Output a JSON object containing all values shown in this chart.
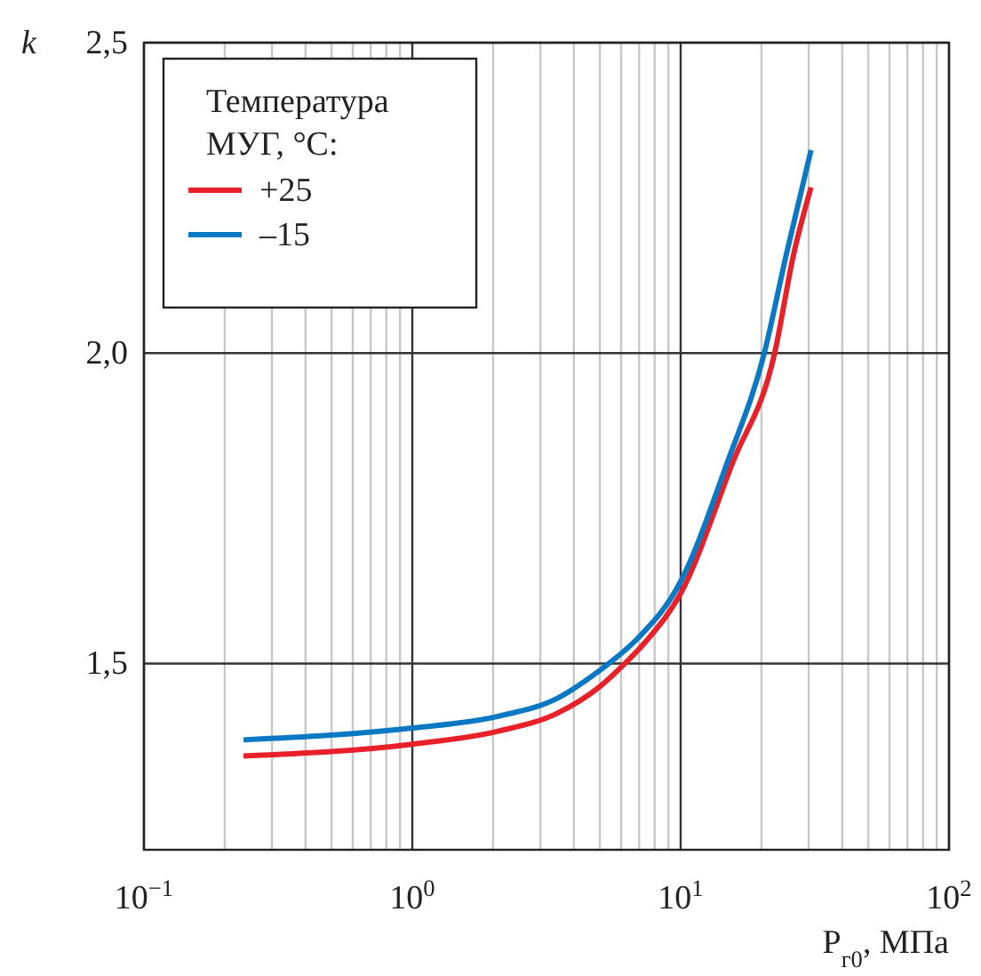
{
  "chart_data": {
    "type": "line",
    "xlabel": "P$_{г0}$, МПа",
    "ylabel": "k",
    "legend_title": "Температура МУГ, °C:",
    "log": "x",
    "grid": true,
    "legend": "top left",
    "line_style": "solid",
    "marker": "none",
    "xlim": [
      0.1,
      100
    ],
    "ylim": [
      1.2,
      2.5
    ],
    "xticks": [
      {
        "value": 0.1,
        "label": "10$^{−1}$"
      },
      {
        "value": 0.2,
        "label": null
      },
      {
        "value": 0.3,
        "label": null
      },
      {
        "value": 0.4,
        "label": null
      },
      {
        "value": 0.5,
        "label": null
      },
      {
        "value": 0.6,
        "label": null
      },
      {
        "value": 0.7,
        "label": null
      },
      {
        "value": 0.8,
        "label": null
      },
      {
        "value": 0.9,
        "label": null
      },
      {
        "value": 1,
        "label": "10$^{0}$"
      },
      {
        "value": 2,
        "label": null
      },
      {
        "value": 3,
        "label": null
      },
      {
        "value": 4,
        "label": null
      },
      {
        "value": 5,
        "label": null
      },
      {
        "value": 6,
        "label": null
      },
      {
        "value": 7,
        "label": null
      },
      {
        "value": 8,
        "label": null
      },
      {
        "value": 9,
        "label": null
      },
      {
        "value": 10,
        "label": "10$^{1}$"
      },
      {
        "value": 20,
        "label": null
      },
      {
        "value": 30,
        "label": null
      },
      {
        "value": 40,
        "label": null
      },
      {
        "value": 50,
        "label": null
      },
      {
        "value": 60,
        "label": null
      },
      {
        "value": 70,
        "label": null
      },
      {
        "value": 80,
        "label": null
      },
      {
        "value": 90,
        "label": null
      },
      {
        "value": 100,
        "label": "10$^{2}$"
      }
    ],
    "yticks": [
      {
        "value": 1.5,
        "label": "1,5"
      },
      {
        "value": 2.0,
        "label": "2,0"
      },
      {
        "value": 2.5,
        "label": "2,5"
      }
    ],
    "series": [
      {
        "name": "+25",
        "color": "#e8202a",
        "x": [
          0.235,
          1,
          2.09,
          3.47,
          5.0,
          6.2,
          7.4,
          10,
          15.6,
          22.4,
          26.3,
          30.6
        ],
        "values": [
          1.351,
          1.37,
          1.391,
          1.42,
          1.463,
          1.5,
          1.535,
          1.613,
          1.823,
          2.0,
          2.157,
          2.267
        ]
      },
      {
        "name": "–15",
        "color": "#0a78c2",
        "x": [
          0.235,
          1,
          2.09,
          3.47,
          5.0,
          5.4,
          6.9,
          10,
          14.9,
          20.5,
          24.7,
          30.6
        ],
        "values": [
          1.377,
          1.396,
          1.415,
          1.444,
          1.489,
          1.5,
          1.54,
          1.632,
          1.823,
          2.0,
          2.157,
          2.327
        ]
      }
    ]
  }
}
